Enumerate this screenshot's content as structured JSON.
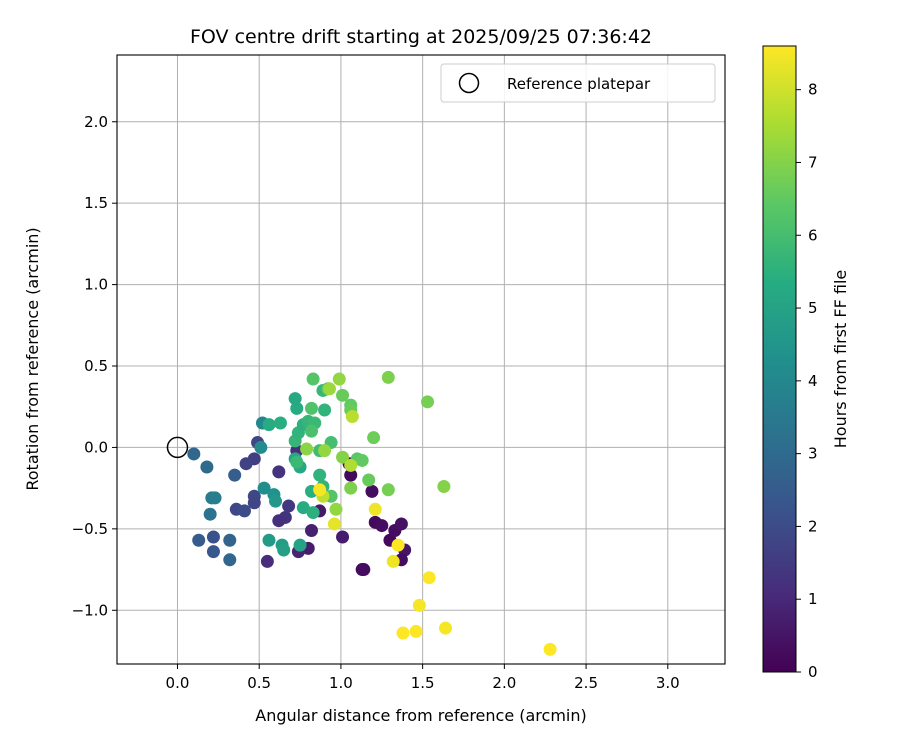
{
  "chart_data": {
    "type": "scatter",
    "title": "FOV centre drift starting at 2025/09/25 07:36:42",
    "xlabel": "Angular distance from reference (arcmin)",
    "ylabel": "Rotation from reference (arcmin)",
    "xlim": [
      -0.37,
      3.35
    ],
    "ylim": [
      -1.33,
      2.41
    ],
    "xticks": [
      0.0,
      0.5,
      1.0,
      1.5,
      2.0,
      2.5,
      3.0
    ],
    "xtick_labels": [
      "0.0",
      "0.5",
      "1.0",
      "1.5",
      "2.0",
      "2.5",
      "3.0"
    ],
    "yticks": [
      -1.0,
      -0.5,
      0.0,
      0.5,
      1.0,
      1.5,
      2.0
    ],
    "ytick_labels": [
      "−1.0",
      "−0.5",
      "0.0",
      "0.5",
      "1.0",
      "1.5",
      "2.0"
    ],
    "grid": true,
    "legend": {
      "placement": "upper-right",
      "entries": [
        "Reference platepar"
      ]
    },
    "reference": {
      "x": 0.0,
      "y": 0.0
    },
    "colorbar": {
      "label": "Hours from first FF file",
      "colormap": "viridis",
      "range": [
        0,
        8.6
      ],
      "ticks": [
        0,
        1,
        2,
        3,
        4,
        5,
        6,
        7,
        8
      ],
      "tick_labels": [
        "0",
        "1",
        "2",
        "3",
        "4",
        "5",
        "6",
        "7",
        "8"
      ]
    },
    "points": [
      {
        "x": 1.05,
        "y": -0.1,
        "c": 0.1
      },
      {
        "x": 1.06,
        "y": -0.17,
        "c": 0.2
      },
      {
        "x": 1.19,
        "y": -0.27,
        "c": 0.3
      },
      {
        "x": 1.21,
        "y": -0.46,
        "c": 0.2
      },
      {
        "x": 1.25,
        "y": -0.48,
        "c": 0.3
      },
      {
        "x": 1.3,
        "y": -0.57,
        "c": 0.2
      },
      {
        "x": 1.33,
        "y": -0.51,
        "c": 0.3
      },
      {
        "x": 1.37,
        "y": -0.47,
        "c": 0.4
      },
      {
        "x": 1.39,
        "y": -0.63,
        "c": 0.5
      },
      {
        "x": 1.37,
        "y": -0.69,
        "c": 0.3
      },
      {
        "x": 1.13,
        "y": -0.75,
        "c": 0.2
      },
      {
        "x": 1.14,
        "y": -0.75,
        "c": 0.3
      },
      {
        "x": 0.87,
        "y": -0.39,
        "c": 0.6
      },
      {
        "x": 0.8,
        "y": -0.62,
        "c": 0.7
      },
      {
        "x": 0.82,
        "y": -0.51,
        "c": 0.8
      },
      {
        "x": 1.01,
        "y": -0.55,
        "c": 0.7
      },
      {
        "x": 0.74,
        "y": -0.64,
        "c": 0.9
      },
      {
        "x": 0.55,
        "y": -0.7,
        "c": 1.1
      },
      {
        "x": 0.66,
        "y": -0.43,
        "c": 1.3
      },
      {
        "x": 0.62,
        "y": -0.45,
        "c": 1.2
      },
      {
        "x": 0.68,
        "y": -0.36,
        "c": 1.4
      },
      {
        "x": 0.73,
        "y": -0.02,
        "c": 1.2
      },
      {
        "x": 0.62,
        "y": -0.15,
        "c": 1.3
      },
      {
        "x": 0.47,
        "y": -0.07,
        "c": 1.6
      },
      {
        "x": 0.42,
        "y": -0.1,
        "c": 1.7
      },
      {
        "x": 0.49,
        "y": 0.03,
        "c": 1.8
      },
      {
        "x": 0.47,
        "y": -0.3,
        "c": 1.9
      },
      {
        "x": 0.47,
        "y": -0.34,
        "c": 1.8
      },
      {
        "x": 0.36,
        "y": -0.38,
        "c": 1.9
      },
      {
        "x": 0.41,
        "y": -0.39,
        "c": 2.0
      },
      {
        "x": 0.22,
        "y": -0.55,
        "c": 2.2
      },
      {
        "x": 0.22,
        "y": -0.64,
        "c": 2.4
      },
      {
        "x": 0.13,
        "y": -0.57,
        "c": 2.5
      },
      {
        "x": 0.35,
        "y": -0.17,
        "c": 2.6
      },
      {
        "x": 0.32,
        "y": -0.57,
        "c": 2.8
      },
      {
        "x": 0.32,
        "y": -0.69,
        "c": 2.9
      },
      {
        "x": 0.1,
        "y": -0.04,
        "c": 2.9
      },
      {
        "x": 0.18,
        "y": -0.12,
        "c": 3.0
      },
      {
        "x": 0.2,
        "y": -0.41,
        "c": 3.3
      },
      {
        "x": 0.21,
        "y": -0.31,
        "c": 3.6
      },
      {
        "x": 0.23,
        "y": -0.31,
        "c": 3.7
      },
      {
        "x": 0.52,
        "y": 0.15,
        "c": 4.0
      },
      {
        "x": 0.51,
        "y": 0.0,
        "c": 4.1
      },
      {
        "x": 0.53,
        "y": -0.25,
        "c": 4.2
      },
      {
        "x": 0.59,
        "y": -0.29,
        "c": 4.4
      },
      {
        "x": 0.6,
        "y": -0.33,
        "c": 4.6
      },
      {
        "x": 0.56,
        "y": -0.57,
        "c": 4.7
      },
      {
        "x": 0.64,
        "y": -0.6,
        "c": 4.8
      },
      {
        "x": 0.65,
        "y": -0.63,
        "c": 4.9
      },
      {
        "x": 0.75,
        "y": -0.6,
        "c": 5.0
      },
      {
        "x": 0.72,
        "y": -0.07,
        "c": 5.1
      },
      {
        "x": 0.75,
        "y": -0.12,
        "c": 5.2
      },
      {
        "x": 0.77,
        "y": -0.37,
        "c": 5.3
      },
      {
        "x": 0.82,
        "y": -0.27,
        "c": 5.4
      },
      {
        "x": 0.83,
        "y": -0.4,
        "c": 5.5
      },
      {
        "x": 0.87,
        "y": -0.17,
        "c": 5.6
      },
      {
        "x": 0.89,
        "y": -0.24,
        "c": 5.6
      },
      {
        "x": 0.72,
        "y": 0.04,
        "c": 5.7
      },
      {
        "x": 0.73,
        "y": -0.09,
        "c": 5.8
      },
      {
        "x": 0.74,
        "y": 0.09,
        "c": 5.6
      },
      {
        "x": 0.77,
        "y": 0.14,
        "c": 5.5
      },
      {
        "x": 0.73,
        "y": 0.24,
        "c": 5.3
      },
      {
        "x": 0.72,
        "y": 0.3,
        "c": 5.2
      },
      {
        "x": 0.56,
        "y": 0.14,
        "c": 5.3
      },
      {
        "x": 0.63,
        "y": 0.15,
        "c": 5.4
      },
      {
        "x": 0.8,
        "y": 0.16,
        "c": 5.7
      },
      {
        "x": 0.84,
        "y": 0.15,
        "c": 5.8
      },
      {
        "x": 0.89,
        "y": 0.35,
        "c": 5.7
      },
      {
        "x": 0.9,
        "y": 0.23,
        "c": 5.6
      },
      {
        "x": 0.87,
        "y": -0.02,
        "c": 5.9
      },
      {
        "x": 0.94,
        "y": 0.03,
        "c": 6.0
      },
      {
        "x": 0.82,
        "y": 0.1,
        "c": 6.1
      },
      {
        "x": 0.82,
        "y": 0.24,
        "c": 6.2
      },
      {
        "x": 0.83,
        "y": 0.42,
        "c": 6.3
      },
      {
        "x": 0.92,
        "y": 0.36,
        "c": 6.4
      },
      {
        "x": 0.94,
        "y": -0.3,
        "c": 6.3
      },
      {
        "x": 1.06,
        "y": 0.26,
        "c": 6.5
      },
      {
        "x": 1.06,
        "y": 0.23,
        "c": 6.6
      },
      {
        "x": 1.01,
        "y": 0.32,
        "c": 6.6
      },
      {
        "x": 1.1,
        "y": -0.07,
        "c": 6.4
      },
      {
        "x": 1.13,
        "y": -0.08,
        "c": 6.5
      },
      {
        "x": 1.17,
        "y": -0.2,
        "c": 6.6
      },
      {
        "x": 1.2,
        "y": 0.06,
        "c": 6.7
      },
      {
        "x": 1.29,
        "y": -0.26,
        "c": 6.8
      },
      {
        "x": 1.29,
        "y": 0.43,
        "c": 6.9
      },
      {
        "x": 1.53,
        "y": 0.28,
        "c": 6.8
      },
      {
        "x": 1.63,
        "y": -0.24,
        "c": 7.0
      },
      {
        "x": 1.06,
        "y": -0.25,
        "c": 6.9
      },
      {
        "x": 1.01,
        "y": -0.06,
        "c": 7.0
      },
      {
        "x": 0.99,
        "y": 0.42,
        "c": 7.2
      },
      {
        "x": 0.79,
        "y": -0.01,
        "c": 7.1
      },
      {
        "x": 0.9,
        "y": -0.02,
        "c": 7.2
      },
      {
        "x": 0.93,
        "y": 0.36,
        "c": 7.3
      },
      {
        "x": 0.97,
        "y": -0.38,
        "c": 7.2
      },
      {
        "x": 1.06,
        "y": -0.11,
        "c": 7.6
      },
      {
        "x": 1.07,
        "y": 0.19,
        "c": 7.7
      },
      {
        "x": 0.89,
        "y": -0.3,
        "c": 7.8
      },
      {
        "x": 0.87,
        "y": -0.26,
        "c": 8.5
      },
      {
        "x": 0.96,
        "y": -0.47,
        "c": 8.3
      },
      {
        "x": 1.21,
        "y": -0.38,
        "c": 8.4
      },
      {
        "x": 1.32,
        "y": -0.7,
        "c": 8.4
      },
      {
        "x": 1.35,
        "y": -0.6,
        "c": 8.6
      },
      {
        "x": 1.54,
        "y": -0.8,
        "c": 8.6
      },
      {
        "x": 1.48,
        "y": -0.97,
        "c": 8.5
      },
      {
        "x": 1.38,
        "y": -1.14,
        "c": 8.6
      },
      {
        "x": 1.46,
        "y": -1.13,
        "c": 8.6
      },
      {
        "x": 1.64,
        "y": -1.11,
        "c": 8.5
      },
      {
        "x": 2.28,
        "y": -1.24,
        "c": 8.6
      }
    ]
  }
}
